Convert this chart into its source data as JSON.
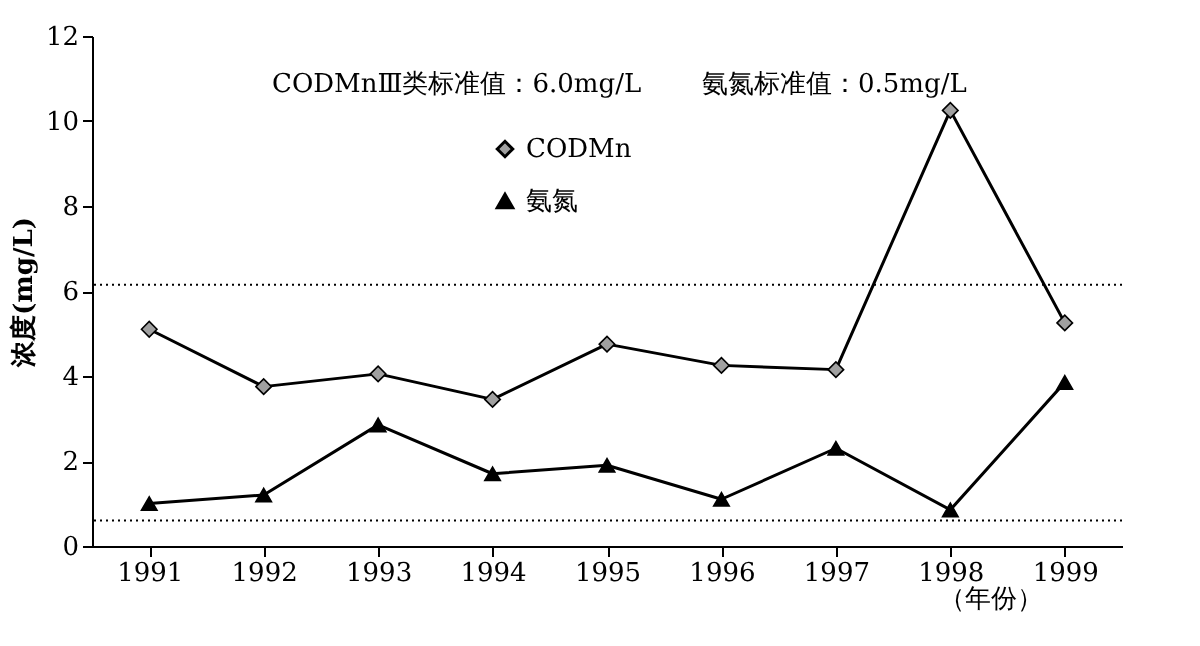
{
  "chart_data": {
    "type": "line",
    "ylabel": "浓度(mg/L)",
    "xlabel": "（年份）",
    "categories": [
      "1991",
      "1992",
      "1993",
      "1994",
      "1995",
      "1996",
      "1997",
      "1998",
      "1999"
    ],
    "series": [
      {
        "name": "CODMn",
        "color": "#000000",
        "marker": "diamond",
        "values": [
          5.1,
          3.75,
          4.05,
          3.45,
          4.75,
          4.25,
          4.15,
          10.25,
          5.25
        ]
      },
      {
        "name": "氨氮",
        "color": "#000000",
        "marker": "triangle",
        "values": [
          1.0,
          1.2,
          2.85,
          1.7,
          1.9,
          1.1,
          2.3,
          0.85,
          3.85
        ]
      }
    ],
    "ylim": [
      0,
      12
    ],
    "yticks": [
      0,
      2,
      4,
      6,
      8,
      10,
      12
    ],
    "grid": false,
    "legend": "top",
    "line_style": "solid",
    "ref_lines": [
      {
        "axis": "y",
        "value": 6.15,
        "line_style": "dotted"
      },
      {
        "axis": "y",
        "value": 0.6,
        "line_style": "dotted"
      }
    ],
    "annotations": [
      "CODMnⅢ类标准值：6.0mg/L",
      "氨氮标准值：0.5mg/L"
    ]
  }
}
